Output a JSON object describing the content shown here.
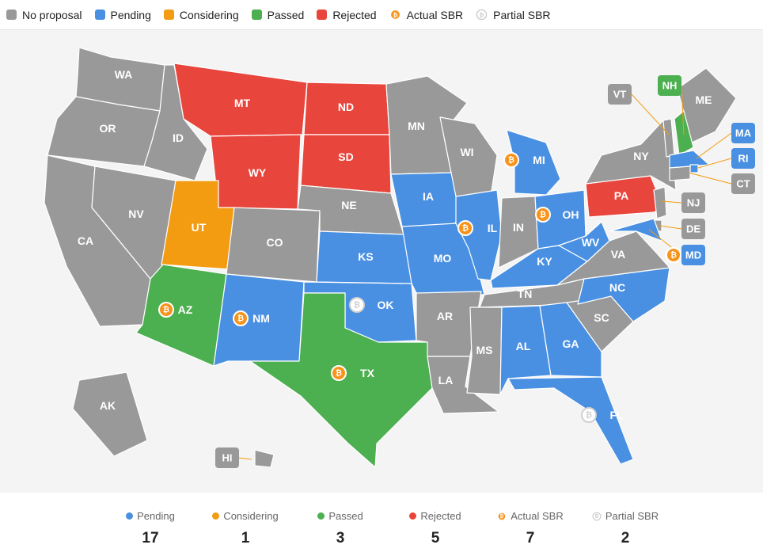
{
  "legend": {
    "items": [
      {
        "label": "No proposal",
        "color": "#999999",
        "kind": "swatch"
      },
      {
        "label": "Pending",
        "color": "#4a90e2",
        "kind": "swatch"
      },
      {
        "label": "Considering",
        "color": "#f39c12",
        "kind": "swatch"
      },
      {
        "label": "Passed",
        "color": "#4caf50",
        "kind": "swatch"
      },
      {
        "label": "Rejected",
        "color": "#e8453c",
        "kind": "swatch"
      },
      {
        "label": "Actual SBR",
        "color": "#f7931a",
        "kind": "bitcoin-icon"
      },
      {
        "label": "Partial SBR",
        "color": "#cccccc",
        "kind": "bitcoin-outline-icon"
      }
    ]
  },
  "colors": {
    "none": "#999999",
    "pending": "#4a90e2",
    "considering": "#f39c12",
    "passed": "#4caf50",
    "rejected": "#e8453c",
    "actual": "#f7931a",
    "partial": "#d0d0d0"
  },
  "states": {
    "WA": {
      "label": "WA",
      "status": "none"
    },
    "OR": {
      "label": "OR",
      "status": "none"
    },
    "CA": {
      "label": "CA",
      "status": "none"
    },
    "NV": {
      "label": "NV",
      "status": "none"
    },
    "ID": {
      "label": "ID",
      "status": "none"
    },
    "MT": {
      "label": "MT",
      "status": "rejected"
    },
    "WY": {
      "label": "WY",
      "status": "rejected"
    },
    "UT": {
      "label": "UT",
      "status": "considering"
    },
    "AZ": {
      "label": "AZ",
      "status": "passed",
      "sbr": "actual"
    },
    "CO": {
      "label": "CO",
      "status": "none"
    },
    "NM": {
      "label": "NM",
      "status": "pending",
      "sbr": "actual"
    },
    "ND": {
      "label": "ND",
      "status": "rejected"
    },
    "SD": {
      "label": "SD",
      "status": "rejected"
    },
    "NE": {
      "label": "NE",
      "status": "none"
    },
    "KS": {
      "label": "KS",
      "status": "pending"
    },
    "OK": {
      "label": "OK",
      "status": "pending",
      "sbr": "partial"
    },
    "TX": {
      "label": "TX",
      "status": "passed",
      "sbr": "actual"
    },
    "MN": {
      "label": "MN",
      "status": "none"
    },
    "IA": {
      "label": "IA",
      "status": "pending"
    },
    "MO": {
      "label": "MO",
      "status": "pending"
    },
    "AR": {
      "label": "AR",
      "status": "none"
    },
    "LA": {
      "label": "LA",
      "status": "none"
    },
    "WI": {
      "label": "WI",
      "status": "none"
    },
    "IL": {
      "label": "IL",
      "status": "pending",
      "sbr": "actual"
    },
    "MI": {
      "label": "MI",
      "status": "pending",
      "sbr": "actual"
    },
    "IN": {
      "label": "IN",
      "status": "none"
    },
    "OH": {
      "label": "OH",
      "status": "pending",
      "sbr": "actual"
    },
    "KY": {
      "label": "KY",
      "status": "pending"
    },
    "TN": {
      "label": "TN",
      "status": "none"
    },
    "MS": {
      "label": "MS",
      "status": "none"
    },
    "AL": {
      "label": "AL",
      "status": "pending"
    },
    "GA": {
      "label": "GA",
      "status": "pending"
    },
    "FL": {
      "label": "FL",
      "status": "pending",
      "sbr": "partial"
    },
    "SC": {
      "label": "SC",
      "status": "none"
    },
    "NC": {
      "label": "NC",
      "status": "pending"
    },
    "VA": {
      "label": "VA",
      "status": "none"
    },
    "WV": {
      "label": "WV",
      "status": "pending"
    },
    "PA": {
      "label": "PA",
      "status": "rejected"
    },
    "NY": {
      "label": "NY",
      "status": "none"
    },
    "ME": {
      "label": "ME",
      "status": "none"
    },
    "AK": {
      "label": "AK",
      "status": "none"
    },
    "VT": {
      "label": "VT",
      "status": "none"
    },
    "NH": {
      "label": "NH",
      "status": "passed"
    },
    "MA": {
      "label": "MA",
      "status": "pending"
    },
    "RI": {
      "label": "RI",
      "status": "pending"
    },
    "CT": {
      "label": "CT",
      "status": "none"
    },
    "NJ": {
      "label": "NJ",
      "status": "none"
    },
    "DE": {
      "label": "DE",
      "status": "none"
    },
    "MD": {
      "label": "MD",
      "status": "pending",
      "sbr": "actual"
    },
    "HI": {
      "label": "HI",
      "status": "none"
    }
  },
  "summary": [
    {
      "label": "Pending",
      "value": "17",
      "color": "#4a90e2",
      "kind": "dot"
    },
    {
      "label": "Considering",
      "value": "1",
      "color": "#f39c12",
      "kind": "dot"
    },
    {
      "label": "Passed",
      "value": "3",
      "color": "#4caf50",
      "kind": "dot"
    },
    {
      "label": "Rejected",
      "value": "5",
      "color": "#e8453c",
      "kind": "dot"
    },
    {
      "label": "Actual SBR",
      "value": "7",
      "color": "#f7931a",
      "kind": "bitcoin-icon"
    },
    {
      "label": "Partial SBR",
      "value": "2",
      "color": "#cccccc",
      "kind": "bitcoin-outline-icon"
    }
  ]
}
